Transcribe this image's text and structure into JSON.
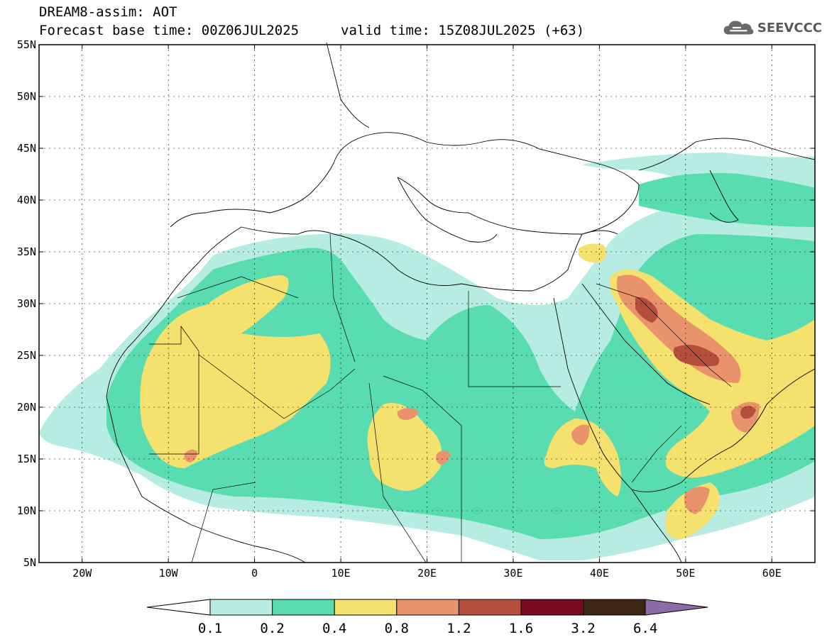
{
  "header": {
    "title": "DREAM8-assim: AOT",
    "base_time": "Forecast base time: 00Z06JUL2025",
    "valid_time": "valid time: 15Z08JUL2025 (+63)"
  },
  "logo": {
    "text": "SEEVCCC",
    "icon": "cloud-icon"
  },
  "map": {
    "lon_range": [
      -25,
      65
    ],
    "lat_range": [
      5,
      55
    ],
    "lat_ticks": [
      {
        "value": 55,
        "label": "55N"
      },
      {
        "value": 50,
        "label": "50N"
      },
      {
        "value": 45,
        "label": "45N"
      },
      {
        "value": 40,
        "label": "40N"
      },
      {
        "value": 35,
        "label": "35N"
      },
      {
        "value": 30,
        "label": "30N"
      },
      {
        "value": 25,
        "label": "25N"
      },
      {
        "value": 20,
        "label": "20N"
      },
      {
        "value": 15,
        "label": "15N"
      },
      {
        "value": 10,
        "label": "10N"
      },
      {
        "value": 5,
        "label": "5N"
      }
    ],
    "lon_ticks": [
      {
        "value": -20,
        "label": "20W"
      },
      {
        "value": -10,
        "label": "10W"
      },
      {
        "value": 0,
        "label": "0"
      },
      {
        "value": 10,
        "label": "10E"
      },
      {
        "value": 20,
        "label": "20E"
      },
      {
        "value": 30,
        "label": "30E"
      },
      {
        "value": 40,
        "label": "40E"
      },
      {
        "value": 50,
        "label": "50E"
      },
      {
        "value": 60,
        "label": "60E"
      }
    ]
  },
  "colorbar": {
    "labels": [
      "0.1",
      "0.2",
      "0.4",
      "0.8",
      "1.2",
      "1.6",
      "3.2",
      "6.4"
    ],
    "colors": {
      "below": "#ffffff",
      "c1": "#b6ece2",
      "c2": "#58dcb0",
      "c3": "#f5e16e",
      "c4": "#e8936c",
      "c5": "#b64e3e",
      "c6": "#7a0a22",
      "c7": "#3b2714",
      "above": "#8e6aa6"
    }
  }
}
